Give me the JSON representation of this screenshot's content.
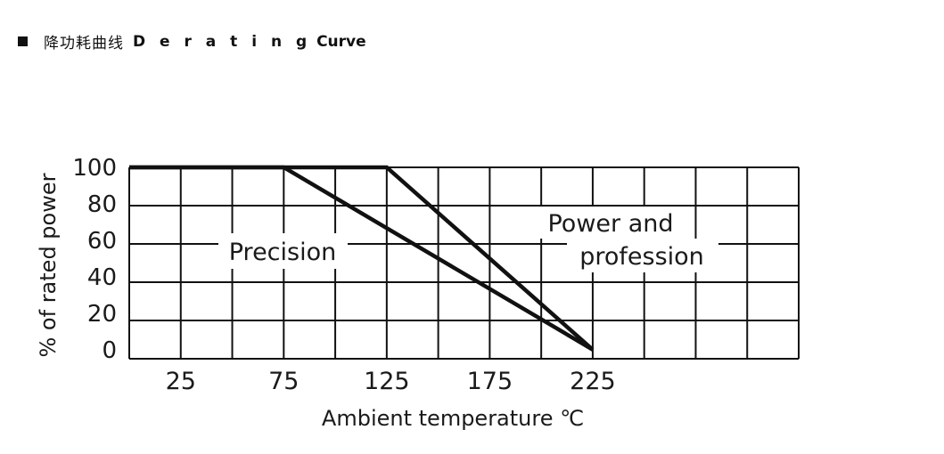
{
  "header": {
    "title_cn": "降功耗曲线",
    "title_en_spaced": "D e r a t i n g",
    "title_en_tail": " Curve"
  },
  "chart_data": {
    "type": "line",
    "title": "Derating Curve",
    "xlabel": "Ambient temperature  ℃",
    "ylabel": "% of rated power",
    "x_ticks": [
      25,
      75,
      125,
      175,
      225
    ],
    "y_ticks": [
      0,
      20,
      40,
      60,
      80,
      100
    ],
    "xlim": [
      0,
      325
    ],
    "ylim": [
      -5,
      100
    ],
    "grid": true,
    "series": [
      {
        "name": "Precision",
        "x": [
          0,
          75,
          225
        ],
        "y": [
          100,
          100,
          0
        ]
      },
      {
        "name": "Power and profession",
        "x": [
          0,
          125,
          225
        ],
        "y": [
          100,
          100,
          0
        ]
      }
    ],
    "annotations": [
      {
        "text": "Precision"
      },
      {
        "text": "Power and"
      },
      {
        "text": "profession"
      }
    ],
    "line_color": "#111111",
    "grid_color": "#111111"
  }
}
